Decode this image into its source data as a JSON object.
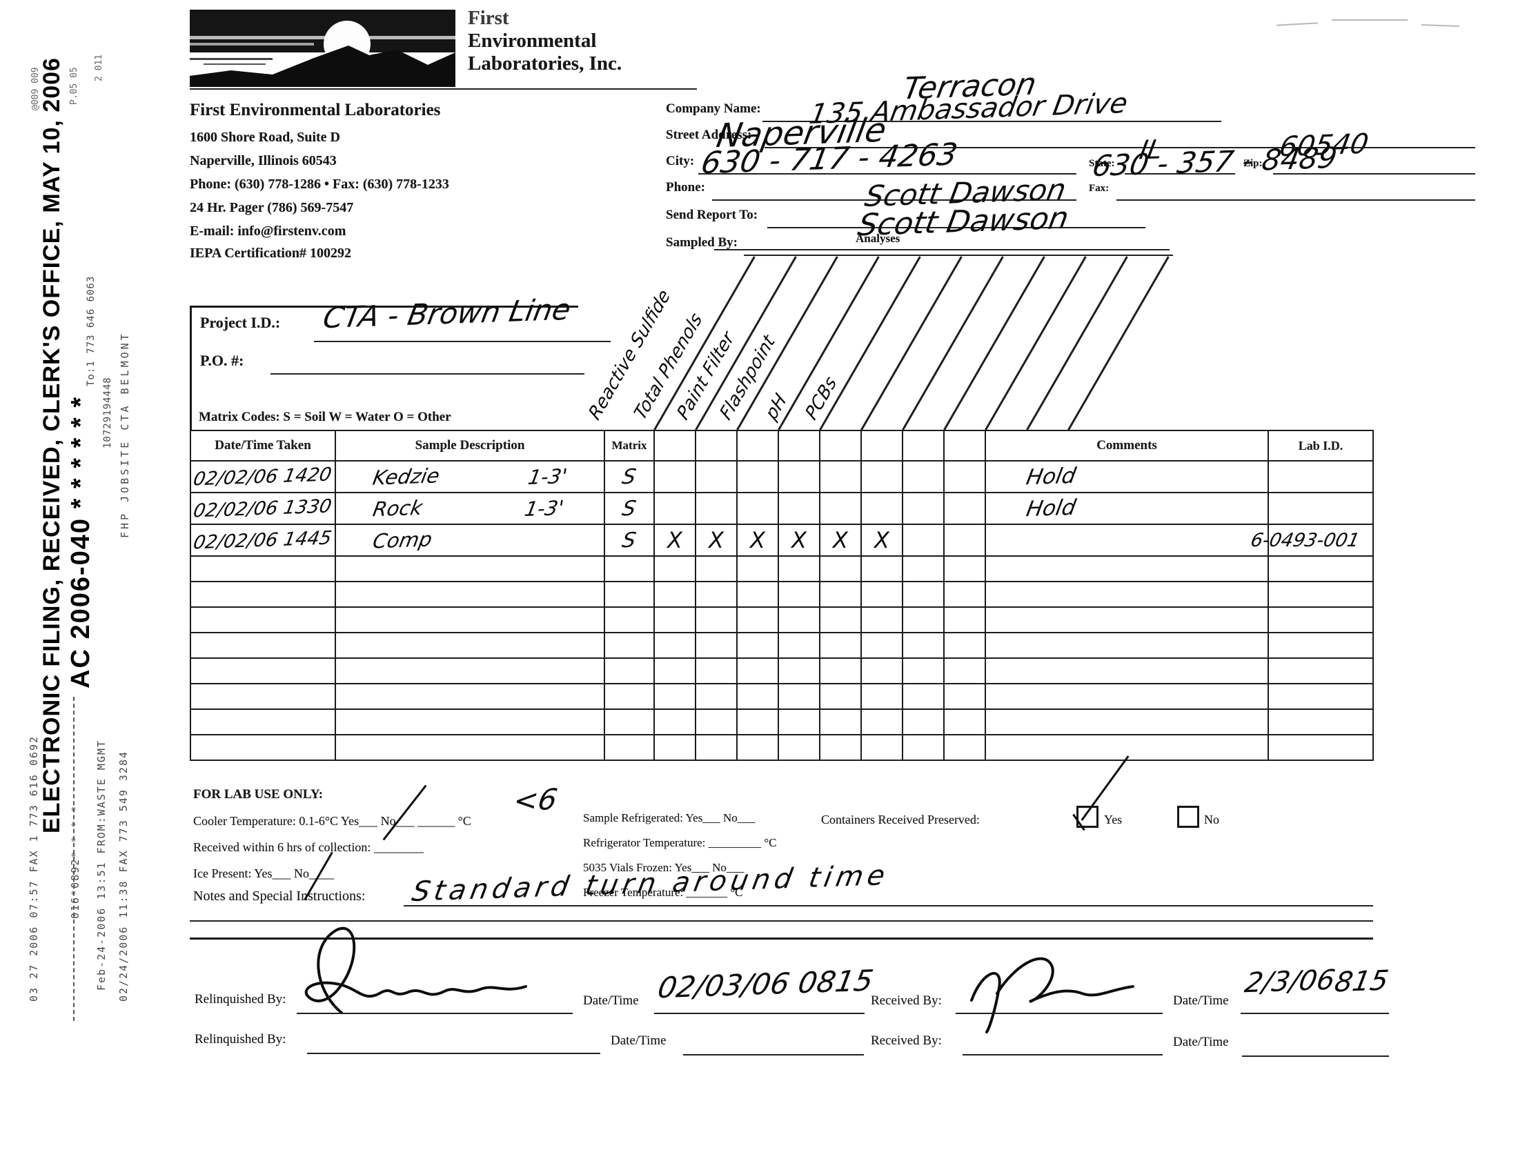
{
  "stamps": {
    "efiling": "ELECTRONIC FILING, RECEIVED, CLERK'S OFFICE, MAY 10, 2006",
    "docket": "AC 2006-040 * * * * * *",
    "fax1": "03 27 2006 07:57 FAX 1 773 616 0692",
    "fax1b": "016*0892* * * *",
    "fax2": "Feb-24-2006 13:51 FROM:WASTE MGMT",
    "fax2b": "To:1 773 646 6063",
    "fax2c": "10729194448",
    "fax3": "02/24/2006 11:38 FAX 773 549 3284",
    "fax3b": "FHP JOBSITE CTA BELMONT",
    "frag1": "@009 009",
    "frag2": "P.05 05",
    "frag3": "2 011"
  },
  "lab": {
    "logo1": "First",
    "logo2": "Environmental",
    "logo3": "Laboratories, Inc.",
    "name": "First Environmental Laboratories",
    "address1": "1600 Shore Road, Suite D",
    "address2": "Naperville, Illinois 60543",
    "phone_fax": "Phone: (630) 778-1286 • Fax: (630) 778-1233",
    "pager": "24 Hr. Pager (786) 569-7547",
    "email": "E-mail: info@firstenv.com",
    "certification": "IEPA Certification# 100292"
  },
  "client": {
    "company_label": "Company Name:",
    "company_value": "Terracon",
    "street_label": "Street Address:",
    "street_value": "135 Ambassador Drive",
    "city_label": "City:",
    "city_value": "Naperville",
    "state_label": "State:",
    "state_value": "IL",
    "zip_label": "Zip:",
    "zip_value": "60540",
    "phone_label": "Phone:",
    "phone_value": "630 - 717 - 4263",
    "fax_label": "Fax:",
    "fax_value": "630 - 357 - 8489",
    "send_label": "Send Report To:",
    "send_value": "Scott Dawson",
    "sampled_label": "Sampled By:",
    "sampled_value": "Scott Dawson"
  },
  "project": {
    "id_label": "Project I.D.:",
    "id_value": "CTA - Brown Line",
    "po_label": "P.O. #:",
    "matrix_codes": "Matrix Codes:  S = Soil    W = Water    O = Other"
  },
  "analyses": {
    "title": "Analyses",
    "labels": [
      "Reactive Sulfide",
      "Total Phenols",
      "Paint Filter",
      "Flashpoint",
      "pH",
      "PCBs"
    ]
  },
  "table": {
    "headers": {
      "date": "Date/Time Taken",
      "desc": "Sample Description",
      "matrix": "Matrix",
      "comments": "Comments",
      "labid": "Lab I.D."
    },
    "rows": [
      {
        "date": "02/02/06 1420",
        "desc": "Kedzie",
        "depth": "1-3'",
        "matrix": "S",
        "checks": [
          "",
          "",
          "",
          "",
          "",
          "",
          "",
          ""
        ],
        "comments": "Hold",
        "labid": ""
      },
      {
        "date": "02/02/06 1330",
        "desc": "Rock",
        "depth": "1-3'",
        "matrix": "S",
        "checks": [
          "",
          "",
          "",
          "",
          "",
          "",
          "",
          ""
        ],
        "comments": "Hold",
        "labid": ""
      },
      {
        "date": "02/02/06 1445",
        "desc": "Comp",
        "depth": "",
        "matrix": "S",
        "checks": [
          "X",
          "X",
          "X",
          "X",
          "X",
          "X",
          "",
          ""
        ],
        "comments": "",
        "labid": "6-0493-001"
      }
    ],
    "empty_row_count": 8
  },
  "lab_use": {
    "title": "FOR LAB USE ONLY:",
    "cooler": "Cooler Temperature: 0.1-6°C  Yes___  No___  ______ °C",
    "cooler_temp": "<6",
    "within6": "Received within 6 hrs of collection: ________",
    "ice": "Ice Present:  Yes___  No____",
    "refrigerated": "Sample Refrigerated:  Yes___  No___",
    "refrig_temp": "Refrigerator Temperature: _________ °C",
    "vials": "5035 Vials Frozen:  Yes___  No___",
    "freezer_temp": "Freezer Temperature: _______ °C",
    "preserved": "Containers Received Preserved:",
    "yes": "Yes",
    "no": "No"
  },
  "notes": {
    "label": "Notes and Special Instructions:",
    "value": "Standard turn around time"
  },
  "signoff": {
    "relinquished": "Relinquished By:",
    "datetime": "Date/Time",
    "received": "Received By:",
    "row1_datetime1": "02/03/06 0815",
    "row1_datetime2": "2/3/06",
    "row1_time2": "815"
  }
}
